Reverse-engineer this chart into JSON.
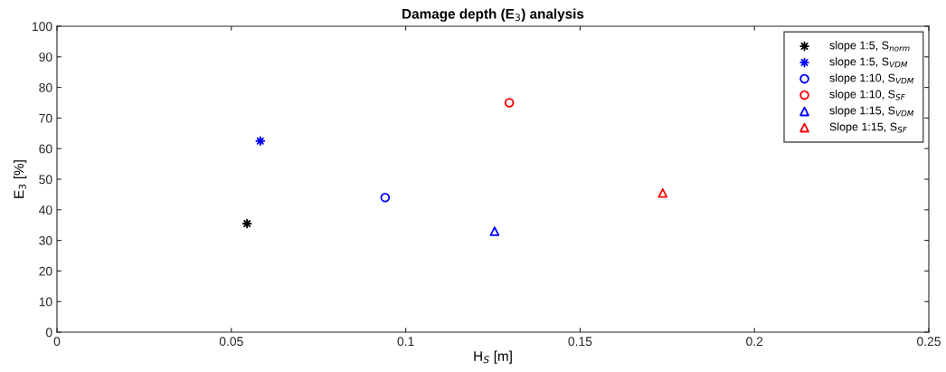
{
  "chart_data": {
    "type": "scatter",
    "title": "Damage depth (E$_{3}$) analysis",
    "xlabel": "H$_{S}$ [m]",
    "ylabel": "E$_{3}$ [%]",
    "xlim": [
      0,
      0.25
    ],
    "xticks": [
      0,
      0.05,
      0.1,
      0.15,
      0.2,
      0.25
    ],
    "ylim": [
      0,
      100
    ],
    "yticks": [
      0,
      10,
      20,
      30,
      40,
      50,
      60,
      70,
      80,
      90,
      100
    ],
    "grid": false,
    "legend": "top right",
    "series": [
      {
        "name": "slope 1:5, S$_{norm}$",
        "color": "#000000",
        "marker": "cross",
        "x": [
          0.0545
        ],
        "values": [
          35.5
        ]
      },
      {
        "name": "slope 1:5, S$_{VDM}$",
        "color": "#0000ff",
        "marker": "cross",
        "x": [
          0.0583
        ],
        "values": [
          62.5
        ]
      },
      {
        "name": "slope 1:10, S$_{VDM}$",
        "color": "#0000ff",
        "marker": "circle",
        "x": [
          0.0941
        ],
        "values": [
          44
        ]
      },
      {
        "name": "slope 1:10, S$_{SF}$",
        "color": "#ff0000",
        "marker": "circle",
        "x": [
          0.1297
        ],
        "values": [
          75
        ]
      },
      {
        "name": "slope 1:15, S$_{VDM}$",
        "color": "#0000ff",
        "marker": "triangle",
        "x": [
          0.1255
        ],
        "values": [
          33
        ]
      },
      {
        "name": "Slope 1:15, S$_{SF}$",
        "color": "#ff0000",
        "marker": "triangle",
        "x": [
          0.1737
        ],
        "values": [
          45.5
        ]
      }
    ]
  }
}
